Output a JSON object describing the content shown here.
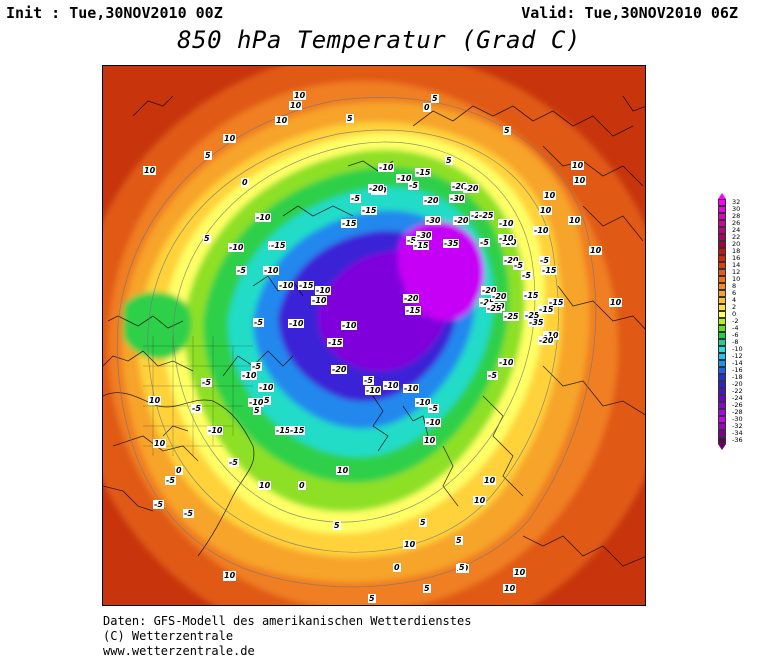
{
  "header": {
    "init": "Init : Tue,30NOV2010 00Z",
    "valid": "Valid: Tue,30NOV2010 06Z",
    "title": "850 hPa Temperatur (Grad C)"
  },
  "footer": {
    "line1": "Daten: GFS-Modell des amerikanischen Wetterdienstes",
    "line2": "(C) Wetterzentrale",
    "line3": "www.wetterzentrale.de"
  },
  "colorbar": {
    "ticks": [
      "32",
      "30",
      "28",
      "26",
      "24",
      "22",
      "20",
      "18",
      "16",
      "14",
      "12",
      "10",
      "8",
      "6",
      "4",
      "2",
      "0",
      "-2",
      "-4",
      "-6",
      "-8",
      "-10",
      "-12",
      "-14",
      "-16",
      "-18",
      "-20",
      "-22",
      "-24",
      "-26",
      "-28",
      "-30",
      "-32",
      "-34",
      "-36"
    ],
    "colors": [
      "#ff00ff",
      "#f000e0",
      "#e000c0",
      "#d000a0",
      "#c00080",
      "#b00060",
      "#a80040",
      "#c01818",
      "#d02810",
      "#e04010",
      "#e85818",
      "#f07020",
      "#f88828",
      "#fca030",
      "#ffc030",
      "#ffe040",
      "#ffff60",
      "#b4f020",
      "#60e020",
      "#20d040",
      "#20d090",
      "#20e0e0",
      "#20c0f0",
      "#2090f0",
      "#2060f0",
      "#2030e0",
      "#3020d0",
      "#5010d0",
      "#7000d0",
      "#9000e0",
      "#b000f0",
      "#c800f8",
      "#a000c0",
      "#800090",
      "#600060"
    ]
  },
  "map": {
    "contour_labels": [
      {
        "t": "10"
      },
      {
        "t": "10"
      },
      {
        "t": "10"
      },
      {
        "t": "5"
      },
      {
        "t": "10"
      },
      {
        "t": "10"
      },
      {
        "t": "5"
      },
      {
        "t": "5"
      },
      {
        "t": "5"
      },
      {
        "t": "10"
      },
      {
        "t": "10"
      },
      {
        "t": "10"
      },
      {
        "t": "10"
      },
      {
        "t": "10"
      },
      {
        "t": "10"
      },
      {
        "t": "5"
      },
      {
        "t": "0"
      },
      {
        "t": "0"
      },
      {
        "t": "5"
      },
      {
        "t": "-10"
      },
      {
        "t": "-15"
      },
      {
        "t": "-5"
      },
      {
        "t": "-10"
      },
      {
        "t": "-10"
      },
      {
        "t": "-15"
      },
      {
        "t": "-20"
      },
      {
        "t": "-20"
      },
      {
        "t": "-20"
      },
      {
        "t": "-30"
      },
      {
        "t": "-25"
      },
      {
        "t": "-30"
      },
      {
        "t": "-30"
      },
      {
        "t": "-35"
      },
      {
        "t": "-25"
      },
      {
        "t": "-20"
      },
      {
        "t": "-10"
      },
      {
        "t": "-10"
      },
      {
        "t": "-10"
      },
      {
        "t": "-5"
      },
      {
        "t": "-5"
      },
      {
        "t": "-15"
      },
      {
        "t": "-20"
      },
      {
        "t": "-15"
      },
      {
        "t": "-5"
      },
      {
        "t": "-15"
      },
      {
        "t": "-20"
      },
      {
        "t": "-15"
      },
      {
        "t": "-5"
      },
      {
        "t": "-10"
      },
      {
        "t": "-10"
      },
      {
        "t": "-10"
      },
      {
        "t": "-15"
      },
      {
        "t": "-20"
      },
      {
        "t": "-15"
      },
      {
        "t": "-20"
      },
      {
        "t": "-25"
      },
      {
        "t": "-10"
      },
      {
        "t": "-5"
      },
      {
        "t": "-15"
      },
      {
        "t": "-25"
      },
      {
        "t": "-20"
      },
      {
        "t": "-20"
      },
      {
        "t": "-25"
      },
      {
        "t": "-15"
      },
      {
        "t": "-35"
      },
      {
        "t": "-10"
      },
      {
        "t": "-5"
      },
      {
        "t": "-10"
      },
      {
        "t": "-15"
      },
      {
        "t": "-10"
      },
      {
        "t": "-10"
      },
      {
        "t": "-5"
      },
      {
        "t": "-10"
      },
      {
        "t": "-15"
      },
      {
        "t": "-10"
      },
      {
        "t": "-5"
      },
      {
        "t": "-10"
      },
      {
        "t": "-10"
      },
      {
        "t": "-5"
      },
      {
        "t": "-10"
      },
      {
        "t": "-10"
      },
      {
        "t": "-10"
      },
      {
        "t": "-5"
      },
      {
        "t": "-10"
      },
      {
        "t": "-20"
      },
      {
        "t": "-10"
      },
      {
        "t": "-10"
      },
      {
        "t": "-10"
      },
      {
        "t": "-15"
      },
      {
        "t": "-15"
      },
      {
        "t": "-10"
      },
      {
        "t": "-5"
      },
      {
        "t": "-5"
      },
      {
        "t": "-5"
      },
      {
        "t": "-10"
      },
      {
        "t": "5"
      },
      {
        "t": "5"
      },
      {
        "t": "10"
      },
      {
        "t": "10"
      },
      {
        "t": "10"
      },
      {
        "t": "10"
      },
      {
        "t": "10"
      },
      {
        "t": "5"
      },
      {
        "t": "10"
      },
      {
        "t": "10"
      },
      {
        "t": "5"
      },
      {
        "t": "10"
      },
      {
        "t": "5"
      },
      {
        "t": "0"
      },
      {
        "t": "5"
      },
      {
        "t": "10"
      },
      {
        "t": "10"
      },
      {
        "t": "0"
      },
      {
        "t": "-5"
      },
      {
        "t": "-5"
      },
      {
        "t": "-5"
      },
      {
        "t": "-5"
      },
      {
        "t": "0"
      },
      {
        "t": "10"
      },
      {
        "t": "5"
      },
      {
        "t": "10"
      },
      {
        "t": "10"
      },
      {
        "t": "5"
      },
      {
        "t": "10"
      },
      {
        "t": "-5"
      },
      {
        "t": "-25"
      },
      {
        "t": "-20"
      }
    ]
  }
}
